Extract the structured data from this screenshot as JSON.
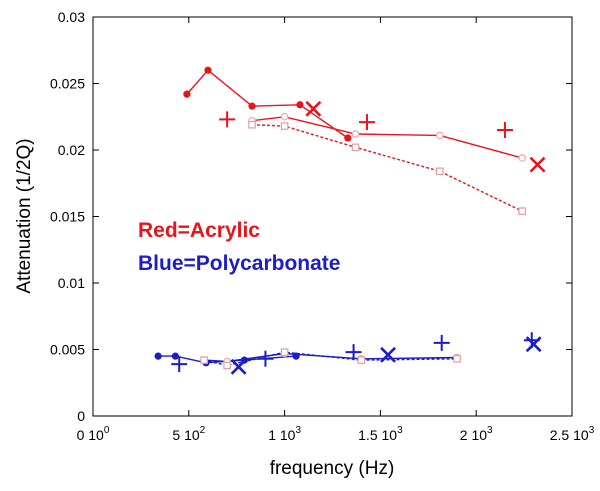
{
  "chart_data": {
    "type": "scatter",
    "title": "",
    "xlabel": "frequency (Hz)",
    "ylabel": "Attenuation (1/2Q)",
    "xlim": [
      0,
      2500
    ],
    "ylim": [
      0,
      0.03
    ],
    "grid": false,
    "x_ticks": [
      {
        "value": 0,
        "base": "0 10",
        "exp": "0"
      },
      {
        "value": 500,
        "base": "5 10",
        "exp": "2"
      },
      {
        "value": 1000,
        "base": "1 10",
        "exp": "3"
      },
      {
        "value": 1500,
        "base": "1.5 10",
        "exp": "3"
      },
      {
        "value": 2000,
        "base": "2 10",
        "exp": "3"
      },
      {
        "value": 2500,
        "base": "2.5 10",
        "exp": "3"
      }
    ],
    "y_ticks": [
      {
        "value": 0,
        "label": "0"
      },
      {
        "value": 0.005,
        "label": "0.005"
      },
      {
        "value": 0.01,
        "label": "0.01"
      },
      {
        "value": 0.015,
        "label": "0.015"
      },
      {
        "value": 0.02,
        "label": "0.02"
      },
      {
        "value": 0.025,
        "label": "0.025"
      },
      {
        "value": 0.03,
        "label": "0.03"
      }
    ],
    "annotations": [
      {
        "text": "Red=Acrylic",
        "color": "#e8141c"
      },
      {
        "text": "Blue=Polycarbonate",
        "color": "#1c1cc8"
      }
    ],
    "series": [
      {
        "color": "#e8141c",
        "marker": "filled-circle",
        "line": "solid",
        "x": [
          490,
          600,
          830,
          1080,
          1330
        ],
        "y": [
          0.0242,
          0.026,
          0.0233,
          0.0234,
          0.0209
        ]
      },
      {
        "color": "#e8141c",
        "marker": "open-circle",
        "line": "solid",
        "x": [
          830,
          1000,
          1370,
          1810,
          2240
        ],
        "y": [
          0.0222,
          0.0225,
          0.0212,
          0.0211,
          0.0194
        ]
      },
      {
        "color": "#e8141c",
        "marker": "open-square",
        "line": "dotted",
        "x": [
          830,
          1000,
          1370,
          1810,
          2240
        ],
        "y": [
          0.0219,
          0.0218,
          0.0202,
          0.0184,
          0.0154
        ]
      },
      {
        "color": "#e8141c",
        "marker": "plus",
        "line": "none",
        "x": [
          700,
          1430,
          2150
        ],
        "y": [
          0.0223,
          0.0221,
          0.0215
        ]
      },
      {
        "color": "#e8141c",
        "marker": "x",
        "line": "none",
        "x": [
          1150,
          2320
        ],
        "y": [
          0.0231,
          0.0189
        ]
      },
      {
        "color": "#1c1cc8",
        "marker": "filled-circle",
        "line": "solid",
        "x": [
          340,
          430,
          590,
          790,
          1060
        ],
        "y": [
          0.0045,
          0.0045,
          0.004,
          0.0042,
          0.0045
        ]
      },
      {
        "color": "#1c1cc8",
        "marker": "open-circle",
        "line": "solid",
        "x": [
          580,
          700,
          1000,
          1400,
          1900
        ],
        "y": [
          0.0042,
          0.0041,
          0.0047,
          0.0043,
          0.0044
        ]
      },
      {
        "color": "#1c1cc8",
        "marker": "open-square",
        "line": "dotted",
        "x": [
          580,
          700,
          1000,
          1400,
          1900
        ],
        "y": [
          0.0042,
          0.0038,
          0.0048,
          0.0042,
          0.0043
        ]
      },
      {
        "color": "#1c1cc8",
        "marker": "plus",
        "line": "none",
        "x": [
          450,
          900,
          1360,
          1820,
          2290
        ],
        "y": [
          0.0039,
          0.0043,
          0.0048,
          0.0055,
          0.0057
        ]
      },
      {
        "color": "#1c1cc8",
        "marker": "x",
        "line": "none",
        "x": [
          760,
          1540,
          2300
        ],
        "y": [
          0.0037,
          0.0046,
          0.0054
        ]
      }
    ]
  }
}
